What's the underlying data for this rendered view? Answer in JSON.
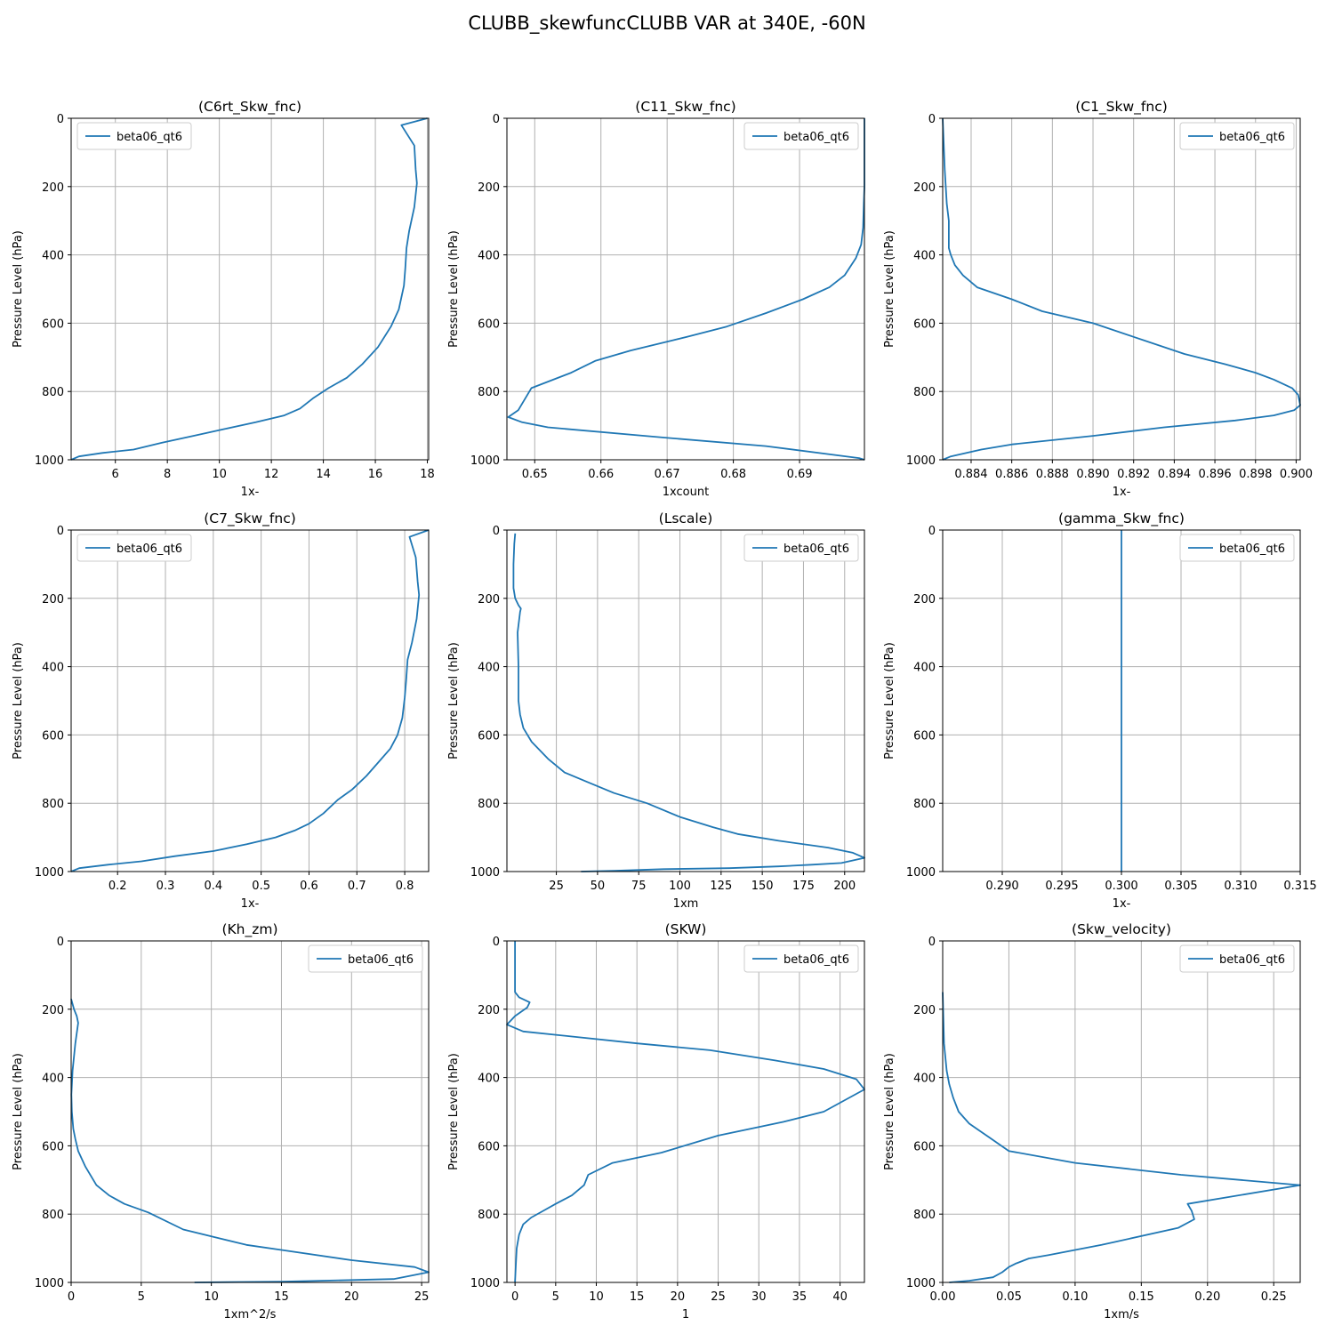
{
  "suptitle": "CLUBB_skewfuncCLUBB VAR at 340E, -60N",
  "line_color": "#1f77b4",
  "chart_data": [
    {
      "type": "line",
      "title": "(C6rt_Skw_fnc)",
      "xlabel": "1x-",
      "ylabel": "Pressure Level (hPa)",
      "xlim": [
        4.3,
        18.05
      ],
      "ylim": [
        1000,
        0
      ],
      "xticks": [
        6,
        8,
        10,
        12,
        14,
        16,
        18
      ],
      "xtick_labels": [
        "6",
        "8",
        "10",
        "12",
        "14",
        "16",
        "18"
      ],
      "yticks": [
        0,
        200,
        400,
        600,
        800,
        1000
      ],
      "ytick_labels": [
        "0",
        "200",
        "400",
        "600",
        "800",
        "1000"
      ],
      "grid": true,
      "legend_loc": "upper left",
      "series": [
        {
          "name": "beta06_qt6",
          "x": [
            4.3,
            4.6,
            5.5,
            6.7,
            7.8,
            9.0,
            10.2,
            11.4,
            12.5,
            13.1,
            13.6,
            14.2,
            14.9,
            15.5,
            16.1,
            16.6,
            16.9,
            17.1,
            17.15,
            17.2,
            17.3,
            17.5,
            17.6,
            17.55,
            17.5,
            17.0,
            18.0
          ],
          "y": [
            1000,
            990,
            980,
            970,
            950,
            930,
            910,
            890,
            870,
            850,
            820,
            790,
            760,
            720,
            670,
            610,
            560,
            490,
            440,
            380,
            330,
            260,
            190,
            150,
            80,
            20,
            0
          ]
        }
      ]
    },
    {
      "type": "line",
      "title": "(C11_Skw_fnc)",
      "xlabel": "1xcount",
      "ylabel": "Pressure Level (hPa)",
      "xlim": [
        0.6458,
        0.6998
      ],
      "ylim": [
        1000,
        0
      ],
      "xticks": [
        0.65,
        0.66,
        0.67,
        0.68,
        0.69
      ],
      "xtick_labels": [
        "0.65",
        "0.66",
        "0.67",
        "0.68",
        "0.69"
      ],
      "yticks": [
        0,
        200,
        400,
        600,
        800,
        1000
      ],
      "ytick_labels": [
        "0",
        "200",
        "400",
        "600",
        "800",
        "1000"
      ],
      "grid": true,
      "legend_loc": "upper right",
      "series": [
        {
          "name": "beta06_qt6",
          "x": [
            0.6998,
            0.699,
            0.6849,
            0.6695,
            0.652,
            0.6481,
            0.646,
            0.6475,
            0.6495,
            0.6555,
            0.6592,
            0.6645,
            0.673,
            0.679,
            0.685,
            0.6905,
            0.6945,
            0.6968,
            0.6985,
            0.6993,
            0.6996,
            0.6997,
            0.6998,
            0.6998,
            0.6998
          ],
          "y": [
            1000,
            995,
            960,
            935,
            905,
            890,
            875,
            855,
            790,
            745,
            710,
            680,
            640,
            610,
            570,
            530,
            495,
            460,
            410,
            370,
            320,
            250,
            200,
            100,
            0
          ]
        }
      ]
    },
    {
      "type": "line",
      "title": "(C1_Skw_fnc)",
      "xlabel": "1x-",
      "ylabel": "Pressure Level (hPa)",
      "xlim": [
        0.8826,
        0.9002
      ],
      "ylim": [
        1000,
        0
      ],
      "xticks": [
        0.884,
        0.886,
        0.888,
        0.89,
        0.892,
        0.894,
        0.896,
        0.898,
        0.9
      ],
      "xtick_labels": [
        "0.884",
        "0.886",
        "0.888",
        "0.890",
        "0.892",
        "0.894",
        "0.896",
        "0.898",
        "0.900"
      ],
      "yticks": [
        0,
        200,
        400,
        600,
        800,
        1000
      ],
      "ytick_labels": [
        "0",
        "200",
        "400",
        "600",
        "800",
        "1000"
      ],
      "grid": true,
      "legend_loc": "upper right",
      "series": [
        {
          "name": "beta06_qt6",
          "x": [
            0.8826,
            0.883,
            0.8845,
            0.886,
            0.89,
            0.8935,
            0.897,
            0.8989,
            0.8999,
            0.9002,
            0.9001,
            0.8998,
            0.8989,
            0.898,
            0.8965,
            0.8945,
            0.892,
            0.89,
            0.8875,
            0.886,
            0.8843,
            0.8836,
            0.8832,
            0.883,
            0.8829,
            0.8829,
            0.8828,
            0.8827,
            0.8826
          ],
          "y": [
            1000,
            990,
            970,
            955,
            930,
            905,
            885,
            870,
            855,
            840,
            810,
            790,
            765,
            745,
            720,
            690,
            640,
            600,
            565,
            530,
            495,
            460,
            430,
            400,
            380,
            300,
            250,
            150,
            0
          ]
        }
      ]
    },
    {
      "type": "line",
      "title": "(C7_Skw_fnc)",
      "xlabel": "1x-",
      "ylabel": "Pressure Level (hPa)",
      "xlim": [
        0.103,
        0.85
      ],
      "ylim": [
        1000,
        0
      ],
      "xticks": [
        0.2,
        0.3,
        0.4,
        0.5,
        0.6,
        0.7,
        0.8
      ],
      "xtick_labels": [
        "0.2",
        "0.3",
        "0.4",
        "0.5",
        "0.6",
        "0.7",
        "0.8"
      ],
      "yticks": [
        0,
        200,
        400,
        600,
        800,
        1000
      ],
      "ytick_labels": [
        "0",
        "200",
        "400",
        "600",
        "800",
        "1000"
      ],
      "grid": true,
      "legend_loc": "upper left",
      "series": [
        {
          "name": "beta06_qt6",
          "x": [
            0.103,
            0.12,
            0.18,
            0.25,
            0.32,
            0.4,
            0.47,
            0.53,
            0.57,
            0.6,
            0.63,
            0.66,
            0.69,
            0.72,
            0.745,
            0.77,
            0.785,
            0.795,
            0.8,
            0.803,
            0.806,
            0.815,
            0.825,
            0.83,
            0.827,
            0.823,
            0.81,
            0.85
          ],
          "y": [
            1000,
            990,
            980,
            970,
            955,
            940,
            920,
            900,
            880,
            860,
            830,
            790,
            760,
            720,
            680,
            640,
            600,
            550,
            490,
            440,
            380,
            330,
            260,
            190,
            150,
            80,
            20,
            0
          ]
        }
      ]
    },
    {
      "type": "line",
      "title": "(Lscale)",
      "xlabel": "1xm",
      "ylabel": "Pressure Level (hPa)",
      "xlim": [
        -5,
        212
      ],
      "ylim": [
        1000,
        0
      ],
      "xticks": [
        25,
        50,
        75,
        100,
        125,
        150,
        175,
        200
      ],
      "xtick_labels": [
        "25",
        "50",
        "75",
        "100",
        "125",
        "150",
        "175",
        "200"
      ],
      "yticks": [
        0,
        200,
        400,
        600,
        800,
        1000
      ],
      "ytick_labels": [
        "0",
        "200",
        "400",
        "600",
        "800",
        "1000"
      ],
      "grid": true,
      "legend_loc": "upper right",
      "series": [
        {
          "name": "beta06_qt6",
          "x": [
            40,
            60,
            90,
            130,
            160,
            180,
            198,
            212,
            205,
            190,
            160,
            135,
            120,
            100,
            80,
            60,
            45,
            30,
            20,
            10,
            5,
            3,
            2,
            2,
            2,
            1.5,
            3,
            3.5,
            2,
            0,
            -1,
            -1,
            -0.5,
            0
          ],
          "y": [
            1000,
            998,
            993,
            990,
            985,
            980,
            975,
            960,
            945,
            930,
            910,
            890,
            870,
            840,
            800,
            770,
            740,
            710,
            670,
            620,
            580,
            540,
            500,
            450,
            400,
            300,
            240,
            230,
            220,
            200,
            170,
            100,
            40,
            10
          ]
        }
      ]
    },
    {
      "type": "line",
      "title": "(gamma_Skw_fnc)",
      "xlabel": "1x-",
      "ylabel": "Pressure Level (hPa)",
      "xlim": [
        0.285,
        0.315
      ],
      "ylim": [
        1000,
        0
      ],
      "xticks": [
        0.29,
        0.295,
        0.3,
        0.305,
        0.31,
        0.315
      ],
      "xtick_labels": [
        "0.290",
        "0.295",
        "0.300",
        "0.305",
        "0.310",
        "0.315"
      ],
      "yticks": [
        0,
        200,
        400,
        600,
        800,
        1000
      ],
      "ytick_labels": [
        "0",
        "200",
        "400",
        "600",
        "800",
        "1000"
      ],
      "grid": true,
      "legend_loc": "upper right",
      "series": [
        {
          "name": "beta06_qt6",
          "x": [
            0.3,
            0.3
          ],
          "y": [
            1000,
            0
          ]
        }
      ]
    },
    {
      "type": "line",
      "title": "(Kh_zm)",
      "xlabel": "1xm^2/s",
      "ylabel": "Pressure Level (hPa)",
      "xlim": [
        0,
        25.5
      ],
      "ylim": [
        1000,
        0
      ],
      "xticks": [
        0,
        5,
        10,
        15,
        20,
        25
      ],
      "xtick_labels": [
        "0",
        "5",
        "10",
        "15",
        "20",
        "25"
      ],
      "yticks": [
        0,
        200,
        400,
        600,
        800,
        1000
      ],
      "ytick_labels": [
        "0",
        "200",
        "400",
        "600",
        "800",
        "1000"
      ],
      "grid": true,
      "legend_loc": "upper right",
      "series": [
        {
          "name": "beta06_qt6",
          "x": [
            8.8,
            15,
            23,
            25.5,
            24.5,
            20,
            15,
            12.5,
            10.5,
            8,
            5.5,
            3.8,
            2.7,
            1.8,
            1.0,
            0.5,
            0.3,
            0.15,
            0.05,
            0.02,
            0.1,
            0.3,
            0.5,
            0.4,
            0.2,
            0
          ],
          "y": [
            1000,
            998,
            990,
            970,
            955,
            935,
            905,
            890,
            870,
            845,
            795,
            770,
            745,
            715,
            660,
            615,
            580,
            550,
            500,
            450,
            380,
            300,
            240,
            220,
            200,
            170
          ]
        }
      ]
    },
    {
      "type": "line",
      "title": "(SKW)",
      "xlabel": "1",
      "ylabel": "Pressure Level (hPa)",
      "xlim": [
        -1,
        43
      ],
      "ylim": [
        1000,
        0
      ],
      "xticks": [
        0,
        5,
        10,
        15,
        20,
        25,
        30,
        35,
        40
      ],
      "xtick_labels": [
        "0",
        "5",
        "10",
        "15",
        "20",
        "25",
        "30",
        "35",
        "40"
      ],
      "yticks": [
        0,
        200,
        400,
        600,
        800,
        1000
      ],
      "ytick_labels": [
        "0",
        "200",
        "400",
        "600",
        "800",
        "1000"
      ],
      "grid": true,
      "legend_loc": "upper right",
      "series": [
        {
          "name": "beta06_qt6",
          "x": [
            0,
            0.1,
            0.2,
            0.5,
            1,
            2,
            3.5,
            5,
            7,
            7.5,
            8.5,
            9,
            12,
            18,
            25,
            33,
            38,
            43,
            42,
            38,
            32,
            24,
            15,
            7,
            1,
            -1,
            0,
            1.5,
            1.8,
            0.5,
            0,
            0,
            0
          ],
          "y": [
            1000,
            950,
            900,
            860,
            830,
            810,
            790,
            770,
            745,
            735,
            715,
            685,
            650,
            620,
            570,
            530,
            500,
            435,
            405,
            375,
            350,
            320,
            300,
            280,
            265,
            245,
            220,
            195,
            180,
            165,
            150,
            100,
            0
          ]
        }
      ]
    },
    {
      "type": "line",
      "title": "(Skw_velocity)",
      "xlabel": "1xm/s",
      "ylabel": "Pressure Level (hPa)",
      "xlim": [
        0,
        0.27
      ],
      "ylim": [
        1000,
        0
      ],
      "xticks": [
        0.0,
        0.05,
        0.1,
        0.15,
        0.2,
        0.25
      ],
      "xtick_labels": [
        "0.00",
        "0.05",
        "0.10",
        "0.15",
        "0.20",
        "0.25"
      ],
      "yticks": [
        0,
        200,
        400,
        600,
        800,
        1000
      ],
      "ytick_labels": [
        "0",
        "200",
        "400",
        "600",
        "800",
        "1000"
      ],
      "grid": true,
      "legend_loc": "upper right",
      "series": [
        {
          "name": "beta06_qt6",
          "x": [
            0.005,
            0.02,
            0.038,
            0.045,
            0.05,
            0.055,
            0.065,
            0.08,
            0.12,
            0.178,
            0.19,
            0.188,
            0.185,
            0.27,
            0.18,
            0.1,
            0.05,
            0.035,
            0.02,
            0.012,
            0.008,
            0.005,
            0.003,
            0.001,
            0
          ],
          "y": [
            1000,
            995,
            985,
            970,
            955,
            945,
            930,
            920,
            890,
            840,
            815,
            790,
            770,
            715,
            685,
            650,
            615,
            575,
            535,
            500,
            460,
            420,
            380,
            300,
            150
          ]
        }
      ]
    }
  ]
}
